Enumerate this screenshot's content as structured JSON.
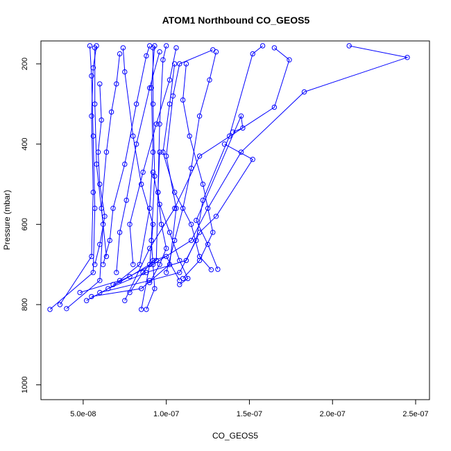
{
  "chart_data": {
    "type": "line",
    "title": "ATOM1 Northbound CO_GEOS5",
    "xlabel": "CO_GEOS5",
    "ylabel": "Pressure (mbar)",
    "xlim": [
      2.5e-08,
      2.55e-07
    ],
    "ylim": [
      1030,
      155
    ],
    "y_reversed": true,
    "x_ticks": [
      5e-08,
      1e-07,
      1.5e-07,
      2e-07,
      2.5e-07
    ],
    "x_tick_labels": [
      "5.0e-08",
      "1.0e-07",
      "1.5e-07",
      "2.0e-07",
      "2.5e-07"
    ],
    "y_ticks": [
      200,
      400,
      600,
      800,
      1000
    ],
    "y_tick_labels": [
      "200",
      "400",
      "600",
      "800",
      "1000"
    ],
    "grid": false,
    "legend": "none",
    "color": "#0000ff",
    "marker": "open-circle",
    "series": [
      {
        "points": [
          [
            3e-08,
            812
          ],
          [
            5.6e-08,
            720
          ],
          [
            5.7e-08,
            560
          ],
          [
            5.6e-08,
            380
          ],
          [
            5.5e-08,
            230
          ],
          [
            5.4e-08,
            155
          ]
        ]
      },
      {
        "points": [
          [
            3.6e-08,
            800
          ],
          [
            5.5e-08,
            680
          ],
          [
            5.6e-08,
            520
          ],
          [
            5.5e-08,
            330
          ],
          [
            5.6e-08,
            210
          ],
          [
            5.8e-08,
            155
          ]
        ]
      },
      {
        "points": [
          [
            4e-08,
            810
          ],
          [
            6e-08,
            740
          ],
          [
            6.2e-08,
            600
          ],
          [
            5.8e-08,
            450
          ],
          [
            5.7e-08,
            300
          ],
          [
            5.7e-08,
            160
          ]
        ]
      },
      {
        "points": [
          [
            4.8e-08,
            770
          ],
          [
            7.2e-08,
            740
          ],
          [
            8.4e-08,
            700
          ],
          [
            9e-08,
            560
          ],
          [
            9.2e-08,
            420
          ],
          [
            9.1e-08,
            260
          ],
          [
            9.3e-08,
            155
          ]
        ]
      },
      {
        "points": [
          [
            5.2e-08,
            790
          ],
          [
            7.8e-08,
            730
          ],
          [
            9.4e-08,
            690
          ],
          [
            9.5e-08,
            520
          ],
          [
            9.6e-08,
            350
          ],
          [
            9.8e-08,
            190
          ],
          [
            1e-07,
            155
          ]
        ]
      },
      {
        "points": [
          [
            5.5e-08,
            780
          ],
          [
            8.5e-08,
            760
          ],
          [
            1.02e-07,
            700
          ],
          [
            1.06e-07,
            560
          ],
          [
            1e-07,
            430
          ],
          [
            1.04e-07,
            280
          ],
          [
            1.08e-07,
            200
          ],
          [
            1.28e-07,
            165
          ]
        ]
      },
      {
        "points": [
          [
            6e-08,
            770
          ],
          [
            9e-08,
            740
          ],
          [
            1.08e-07,
            720
          ],
          [
            1.18e-07,
            640
          ],
          [
            1.22e-07,
            540
          ],
          [
            1.38e-07,
            380
          ],
          [
            1.52e-07,
            175
          ],
          [
            1.58e-07,
            155
          ]
        ]
      },
      {
        "points": [
          [
            6.5e-08,
            760
          ],
          [
            8.8e-08,
            720
          ],
          [
            1.12e-07,
            690
          ],
          [
            1.2e-07,
            620
          ],
          [
            1.3e-07,
            580
          ],
          [
            1.52e-07,
            438
          ],
          [
            1.35e-07,
            400
          ]
        ]
      },
      {
        "points": [
          [
            6.8e-08,
            750
          ],
          [
            9.2e-08,
            700
          ],
          [
            1.15e-07,
            640
          ],
          [
            1.25e-07,
            560
          ],
          [
            1.45e-07,
            420
          ],
          [
            1.83e-07,
            270
          ],
          [
            2.45e-07,
            184
          ],
          [
            2.1e-07,
            155
          ]
        ]
      },
      {
        "points": [
          [
            7.5e-08,
            790
          ],
          [
            9e-08,
            660
          ],
          [
            1.05e-07,
            560
          ],
          [
            1.2e-07,
            430
          ],
          [
            1.65e-07,
            308
          ],
          [
            1.74e-07,
            190
          ],
          [
            1.65e-07,
            160
          ]
        ]
      },
      {
        "points": [
          [
            8.5e-08,
            812
          ],
          [
            9e-08,
            700
          ],
          [
            9.2e-08,
            600
          ],
          [
            8.5e-08,
            500
          ],
          [
            8e-08,
            380
          ],
          [
            7.5e-08,
            220
          ],
          [
            7.4e-08,
            160
          ]
        ]
      },
      {
        "points": [
          [
            8.8e-08,
            812
          ],
          [
            9.3e-08,
            760
          ],
          [
            9.1e-08,
            640
          ],
          [
            9.3e-08,
            480
          ],
          [
            9.2e-08,
            300
          ],
          [
            9.2e-08,
            160
          ]
        ]
      },
      {
        "points": [
          [
            6.2e-08,
            700
          ],
          [
            6.6e-08,
            640
          ],
          [
            6.8e-08,
            560
          ],
          [
            7.5e-08,
            450
          ],
          [
            8.2e-08,
            300
          ],
          [
            8.8e-08,
            180
          ],
          [
            9e-08,
            155
          ]
        ]
      },
      {
        "points": [
          [
            7e-08,
            720
          ],
          [
            7.2e-08,
            620
          ],
          [
            7.6e-08,
            540
          ],
          [
            8.2e-08,
            400
          ],
          [
            9e-08,
            260
          ],
          [
            9.6e-08,
            170
          ]
        ]
      },
      {
        "points": [
          [
            8e-08,
            700
          ],
          [
            7.8e-08,
            600
          ],
          [
            8.6e-08,
            470
          ],
          [
            9.4e-08,
            350
          ],
          [
            1.02e-07,
            240
          ],
          [
            1.06e-07,
            160
          ]
        ]
      },
      {
        "points": [
          [
            1e-07,
            720
          ],
          [
            1.05e-07,
            640
          ],
          [
            1.1e-07,
            560
          ],
          [
            1.15e-07,
            460
          ],
          [
            1.2e-07,
            330
          ],
          [
            1.26e-07,
            240
          ],
          [
            1.3e-07,
            170
          ]
        ]
      },
      {
        "points": [
          [
            1.1e-07,
            735
          ],
          [
            1.2e-07,
            690
          ],
          [
            1.28e-07,
            620
          ],
          [
            1.22e-07,
            500
          ],
          [
            1.14e-07,
            380
          ],
          [
            1.1e-07,
            290
          ],
          [
            1.12e-07,
            200
          ]
        ]
      },
      {
        "points": [
          [
            1.27e-07,
            713
          ],
          [
            1.2e-07,
            680
          ],
          [
            1.15e-07,
            600
          ],
          [
            1.05e-07,
            520
          ],
          [
            9.8e-08,
            420
          ],
          [
            1.02e-07,
            300
          ],
          [
            1.05e-07,
            200
          ]
        ]
      },
      {
        "points": [
          [
            6.4e-08,
            680
          ],
          [
            6.1e-08,
            560
          ],
          [
            6.4e-08,
            420
          ],
          [
            6.7e-08,
            320
          ],
          [
            7e-08,
            250
          ],
          [
            7.2e-08,
            175
          ]
        ]
      },
      {
        "points": [
          [
            1.31e-07,
            712
          ],
          [
            1.25e-07,
            650
          ],
          [
            1.18e-07,
            590
          ],
          [
            1.45e-07,
            330
          ],
          [
            1.46e-07,
            360
          ],
          [
            1.4e-07,
            370
          ]
        ]
      },
      {
        "points": [
          [
            7.8e-08,
            770
          ],
          [
            8.6e-08,
            720
          ],
          [
            9.2e-08,
            690
          ],
          [
            1e-07,
            680
          ],
          [
            1.08e-07,
            740
          ]
        ]
      },
      {
        "points": [
          [
            5.7e-08,
            700
          ],
          [
            6e-08,
            650
          ],
          [
            6.3e-08,
            580
          ],
          [
            6e-08,
            500
          ],
          [
            5.9e-08,
            420
          ],
          [
            6.1e-08,
            340
          ],
          [
            6e-08,
            250
          ]
        ]
      },
      {
        "points": [
          [
            9e-08,
            745
          ],
          [
            9.6e-08,
            700
          ],
          [
            1e-07,
            660
          ],
          [
            9.7e-08,
            600
          ],
          [
            9.5e-08,
            520
          ],
          [
            9.6e-08,
            420
          ]
        ]
      },
      {
        "points": [
          [
            1.08e-07,
            750
          ],
          [
            1.13e-07,
            735
          ],
          [
            1.08e-07,
            690
          ],
          [
            1.02e-07,
            620
          ],
          [
            9.6e-08,
            550
          ],
          [
            9.2e-08,
            470
          ]
        ]
      }
    ]
  }
}
